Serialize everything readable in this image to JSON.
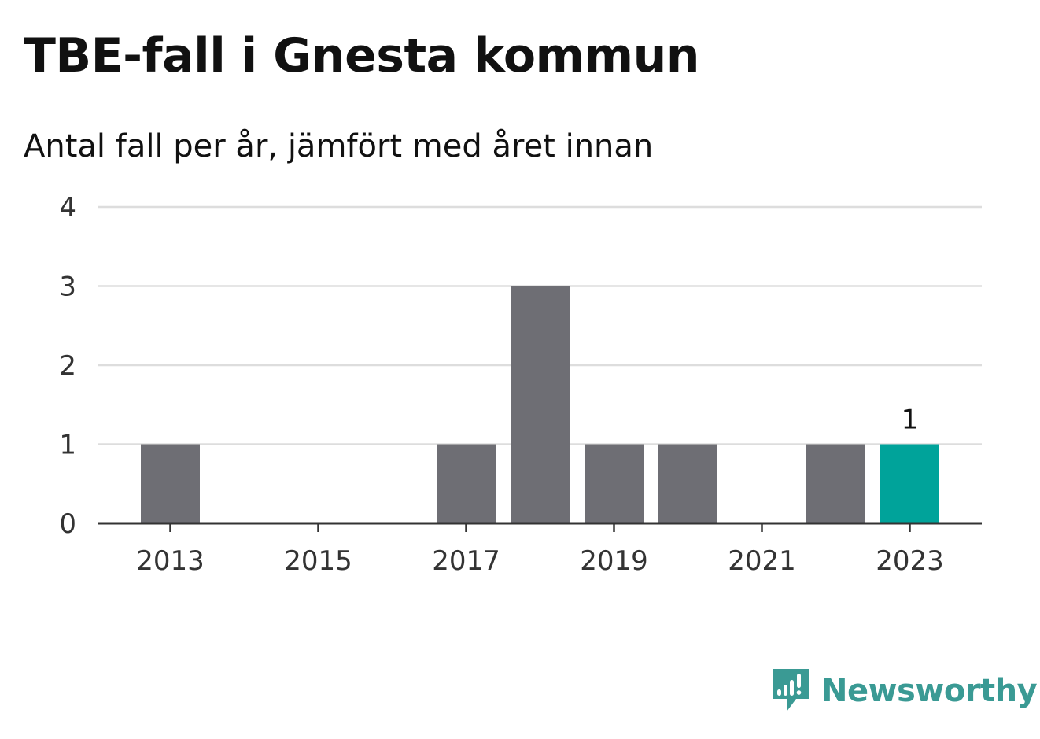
{
  "title": "TBE-fall i Gnesta kommun",
  "subtitle": "Antal fall per år, jämfört med året innan",
  "brand": {
    "name": "Newsworthy",
    "icon": "newsworthy-logo-icon",
    "color": "#3a9a94"
  },
  "colors": {
    "bar": "#6e6e74",
    "highlight": "#00a39a",
    "grid": "#dddddd",
    "axis": "#333333"
  },
  "chart_data": {
    "type": "bar",
    "title": "TBE-fall i Gnesta kommun",
    "subtitle": "Antal fall per år, jämfört med året innan",
    "xlabel": "",
    "ylabel": "",
    "categories": [
      2013,
      2014,
      2015,
      2016,
      2017,
      2018,
      2019,
      2020,
      2021,
      2022,
      2023
    ],
    "values": [
      1,
      0,
      0,
      0,
      1,
      3,
      1,
      1,
      0,
      1,
      1
    ],
    "x_tick_labels": [
      "2013",
      "2015",
      "2017",
      "2019",
      "2021",
      "2023"
    ],
    "y_ticks": [
      0,
      1,
      2,
      3,
      4
    ],
    "ylim": [
      0,
      4
    ],
    "grid": true,
    "highlight_category": 2023,
    "data_labels": [
      {
        "category": 2023,
        "text": "1"
      }
    ]
  }
}
